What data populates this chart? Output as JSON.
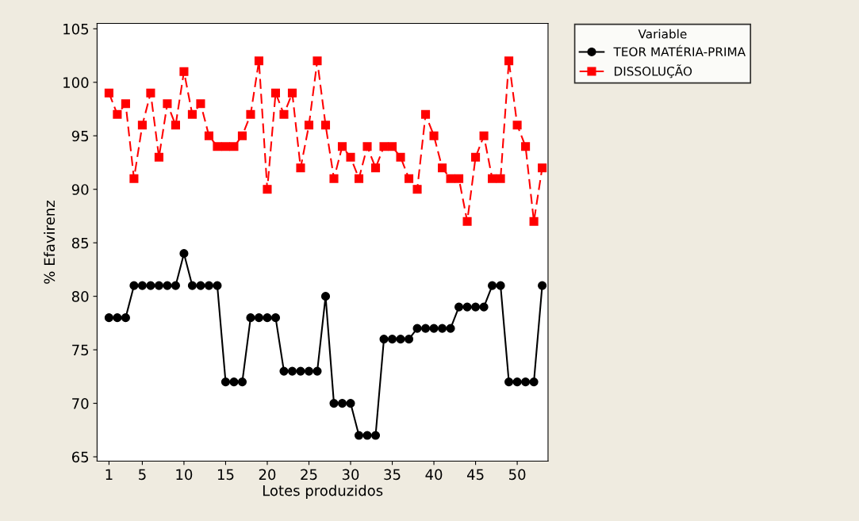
{
  "chart_data": {
    "type": "line",
    "xlabel": "Lotes produzidos",
    "ylabel": "% Efavirenz",
    "legend_title": "Variable",
    "legend": "top right",
    "x": [
      1,
      2,
      3,
      4,
      5,
      6,
      7,
      8,
      9,
      10,
      11,
      12,
      13,
      14,
      15,
      16,
      17,
      18,
      19,
      20,
      21,
      22,
      23,
      24,
      25,
      26,
      27,
      28,
      29,
      30,
      31,
      32,
      33,
      34,
      35,
      36,
      37,
      38,
      39,
      40,
      41,
      42,
      43,
      44,
      45,
      46,
      47,
      48,
      49,
      50,
      51,
      52,
      53
    ],
    "series": [
      {
        "name": "TEOR MATÉRIA-PRIMA",
        "color": "#000000",
        "marker": "circle",
        "line_style": "solid",
        "values": [
          78,
          78,
          78,
          81,
          81,
          81,
          81,
          81,
          81,
          84,
          81,
          81,
          81,
          81,
          72,
          72,
          72,
          78,
          78,
          78,
          78,
          73,
          73,
          73,
          73,
          73,
          80,
          70,
          70,
          70,
          67,
          67,
          67,
          76,
          76,
          76,
          76,
          77,
          77,
          77,
          77,
          77,
          79,
          79,
          79,
          79,
          81,
          81,
          72,
          72,
          72,
          72,
          81
        ]
      },
      {
        "name": "DISSOLUÇÃO",
        "color": "#ff0000",
        "marker": "square",
        "line_style": "dashed",
        "values": [
          99,
          97,
          98,
          91,
          96,
          99,
          93,
          98,
          96,
          101,
          97,
          98,
          95,
          94,
          94,
          94,
          95,
          97,
          102,
          90,
          99,
          97,
          99,
          92,
          96,
          102,
          96,
          91,
          94,
          93,
          91,
          94,
          92,
          94,
          94,
          93,
          91,
          90,
          97,
          95,
          92,
          91,
          91,
          87,
          93,
          95,
          91,
          91,
          102,
          96,
          94,
          87,
          92
        ]
      }
    ],
    "xlim": [
      -0.43,
      53.7
    ],
    "xticks": [
      1,
      5,
      10,
      15,
      20,
      25,
      30,
      35,
      40,
      45,
      50
    ],
    "ylim": [
      64.6,
      105.5
    ],
    "yticks": [
      65,
      70,
      75,
      80,
      85,
      90,
      95,
      100,
      105
    ],
    "grid": false
  }
}
